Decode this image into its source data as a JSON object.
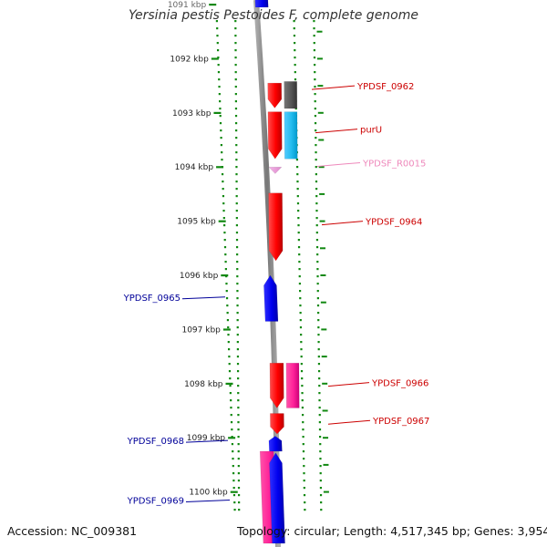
{
  "title": "Yersinia pestis Pestoides F, complete genome",
  "accession": "Accession: NC_009381",
  "topology": "Topology: circular; Length: 4,517,345 bp; Genes: 3,954",
  "colors": {
    "forward_gene": "#ff0000",
    "reverse_gene": "#0000ff",
    "pseudo_gene": "#ff3399",
    "trna": "#ee99dd",
    "rrna_like": "#22bbee",
    "misc_feature": "#555555",
    "scale_mark": "#118811",
    "backbone": "#888888"
  },
  "scale": {
    "unit": "kbp",
    "start_kbp": 1091,
    "end_kbp": 1100,
    "ticks": [
      {
        "kbp": 1091,
        "label": "1091 kbp"
      },
      {
        "kbp": 1092,
        "label": "1092 kbp"
      },
      {
        "kbp": 1093,
        "label": "1093 kbp"
      },
      {
        "kbp": 1094,
        "label": "1094 kbp"
      },
      {
        "kbp": 1095,
        "label": "1095 kbp"
      },
      {
        "kbp": 1096,
        "label": "1096 kbp"
      },
      {
        "kbp": 1097,
        "label": "1097 kbp"
      },
      {
        "kbp": 1098,
        "label": "1098 kbp"
      },
      {
        "kbp": 1099,
        "label": "1099 kbp"
      },
      {
        "kbp": 1100,
        "label": "1100 kbp"
      }
    ]
  },
  "features": [
    {
      "id": "gene-0962a",
      "strand": "forward",
      "type": "gene",
      "start_kbp": 1092.45,
      "end_kbp": 1092.91,
      "track": "outer"
    },
    {
      "id": "gene-0962b",
      "strand": "forward",
      "type": "misc_feature",
      "start_kbp": 1092.42,
      "end_kbp": 1092.92,
      "track": "outer2"
    },
    {
      "id": "gene-purU-a",
      "strand": "forward",
      "type": "gene",
      "start_kbp": 1092.98,
      "end_kbp": 1093.85,
      "track": "outer"
    },
    {
      "id": "gene-purU-b",
      "strand": "forward",
      "type": "rrna_like",
      "start_kbp": 1092.98,
      "end_kbp": 1093.85,
      "track": "outer2"
    },
    {
      "id": "trna-R0015",
      "strand": "forward",
      "type": "trna",
      "start_kbp": 1094.0,
      "end_kbp": 1094.09,
      "track": "outer"
    },
    {
      "id": "gene-0964",
      "strand": "forward",
      "type": "gene",
      "start_kbp": 1094.48,
      "end_kbp": 1095.73,
      "track": "outer"
    },
    {
      "id": "gene-0965",
      "strand": "reverse",
      "type": "gene",
      "start_kbp": 1096.0,
      "end_kbp": 1096.85,
      "track": "inner"
    },
    {
      "id": "gene-0966a",
      "strand": "forward",
      "type": "gene",
      "start_kbp": 1097.62,
      "end_kbp": 1098.45,
      "track": "outer"
    },
    {
      "id": "gene-0966b",
      "strand": "forward",
      "type": "pseudo_gene",
      "start_kbp": 1097.62,
      "end_kbp": 1098.45,
      "track": "outer2"
    },
    {
      "id": "gene-0967",
      "strand": "forward",
      "type": "gene",
      "start_kbp": 1098.55,
      "end_kbp": 1098.93,
      "track": "outer"
    },
    {
      "id": "gene-0968",
      "strand": "reverse",
      "type": "gene",
      "start_kbp": 1098.97,
      "end_kbp": 1099.25,
      "track": "inner"
    },
    {
      "id": "gene-0969a",
      "strand": "reverse",
      "type": "pseudo_gene",
      "start_kbp": 1099.25,
      "end_kbp": 1100.95,
      "track": "inner2"
    },
    {
      "id": "gene-0969b",
      "strand": "reverse",
      "type": "gene",
      "start_kbp": 1099.28,
      "end_kbp": 1100.95,
      "track": "inner"
    },
    {
      "id": "gene-top",
      "strand": "reverse",
      "type": "gene",
      "start_kbp": 1090.85,
      "end_kbp": 1091.05,
      "track": "inner"
    }
  ],
  "labels": [
    {
      "text": "YPDSF_0962",
      "kbp": 1092.5,
      "side": "right",
      "type": "gene"
    },
    {
      "text": "purU",
      "kbp": 1093.3,
      "side": "right",
      "type": "gene"
    },
    {
      "text": "YPDSF_R0015",
      "kbp": 1093.92,
      "side": "right",
      "type": "trna"
    },
    {
      "text": "YPDSF_0964",
      "kbp": 1095.0,
      "side": "right",
      "type": "gene"
    },
    {
      "text": "YPDSF_0965",
      "kbp": 1096.4,
      "side": "left",
      "type": "gene"
    },
    {
      "text": "YPDSF_0966",
      "kbp": 1097.98,
      "side": "right",
      "type": "gene"
    },
    {
      "text": "YPDSF_0967",
      "kbp": 1098.68,
      "side": "right",
      "type": "gene"
    },
    {
      "text": "YPDSF_0968",
      "kbp": 1099.05,
      "side": "left",
      "type": "gene"
    },
    {
      "text": "YPDSF_0969",
      "kbp": 1100.15,
      "side": "left",
      "type": "gene"
    }
  ]
}
